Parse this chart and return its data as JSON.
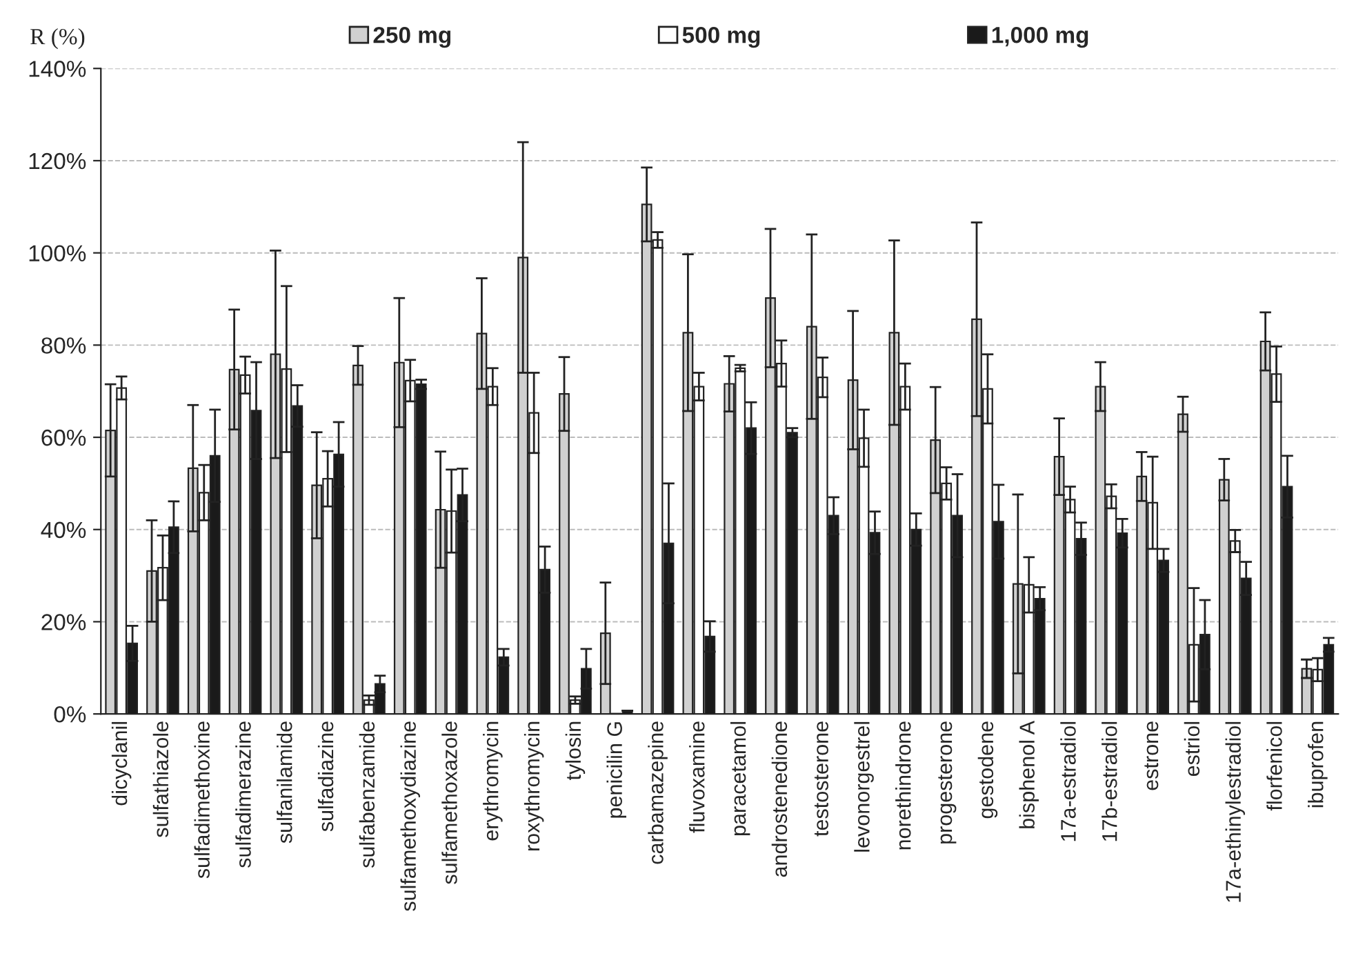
{
  "chart_data": {
    "type": "bar",
    "ylabel": "R (%)",
    "categories": [
      "dicyclanil",
      "sulfathiazole",
      "sulfadimethoxine",
      "sulfadimerazine",
      "sulfanilamide",
      "sulfadiazine",
      "sulfabenzamide",
      "sulfamethoxydiazine",
      "sulfamethoxazole",
      "erythromycin",
      "roxythromycin",
      "tylosin",
      "penicilin G",
      "carbamazepine",
      "fluvoxamine",
      "paracetamol",
      "androstenedione",
      "testosterone",
      "levonorgestrel",
      "norethindrone",
      "progesterone",
      "gestodene",
      "bisphenol A",
      "17a-estradiol",
      "17b-estradiol",
      "estrone",
      "estriol",
      "17a-ethinylestradiol",
      "florfenicol",
      "ibuprofen"
    ],
    "series": [
      {
        "name": "250 mg",
        "color": "#d0d0d0",
        "values": [
          61.5,
          31,
          53.3,
          74.7,
          78,
          49.6,
          75.6,
          76.2,
          44.3,
          82.5,
          99,
          69.4,
          17.5,
          110.5,
          82.7,
          71.6,
          90.2,
          84,
          72.4,
          82.7,
          59.4,
          85.6,
          28.2,
          55.8,
          71,
          51.5,
          65,
          50.8,
          80.8,
          9.8
        ],
        "errors": [
          10,
          11,
          13.7,
          13,
          22.5,
          11.5,
          4.2,
          14,
          12.6,
          12,
          25,
          8,
          11,
          8,
          17,
          6,
          15,
          20,
          15,
          20,
          11.5,
          21,
          19.4,
          8.3,
          5.3,
          5.3,
          3.8,
          4.5,
          6.3,
          2
        ]
      },
      {
        "name": "500 mg",
        "color": "#ffffff",
        "values": [
          70.7,
          31.7,
          48,
          73.5,
          74.8,
          51,
          3,
          72.3,
          44,
          71,
          65.3,
          3,
          null,
          102.8,
          71,
          75,
          76,
          73,
          59.8,
          71,
          50,
          70.5,
          28,
          46.5,
          47.2,
          45.8,
          15,
          37.5,
          73.7,
          9.6
        ],
        "errors": [
          2.5,
          7,
          6,
          4,
          18,
          6,
          1,
          4.5,
          9,
          4,
          8.7,
          0.8,
          null,
          1.7,
          3,
          0.7,
          5,
          4.3,
          6.2,
          5,
          3.5,
          7.5,
          6,
          2.8,
          2.6,
          10,
          12.3,
          2.4,
          6,
          2.5
        ]
      },
      {
        "name": "1,000 mg",
        "color": "#1a1a1a",
        "values": [
          15.3,
          40.5,
          56,
          65.8,
          66.8,
          56.3,
          6.5,
          71.5,
          47.5,
          12.3,
          31.3,
          9.8,
          0.7,
          37,
          16.8,
          62,
          61,
          43,
          39.3,
          40,
          43,
          41.7,
          25,
          38,
          39.2,
          33.3,
          17.2,
          29.4,
          49.3,
          15
        ],
        "errors": [
          3.8,
          5.6,
          10,
          10.5,
          4.5,
          7,
          1.8,
          1,
          5.7,
          1.8,
          5,
          4.3,
          null,
          13,
          3.3,
          5.6,
          1,
          4,
          4.6,
          3.5,
          9,
          8,
          2.5,
          3.5,
          3.1,
          2.5,
          7.5,
          3.6,
          6.7,
          1.5
        ]
      }
    ],
    "ylim": [
      0,
      140
    ],
    "yticks": [
      {
        "value": 0,
        "label": "0%"
      },
      {
        "value": 20,
        "label": "20%"
      },
      {
        "value": 40,
        "label": "40%"
      },
      {
        "value": 60,
        "label": "60%"
      },
      {
        "value": 80,
        "label": "80%"
      },
      {
        "value": 100,
        "label": "100%"
      },
      {
        "value": 120,
        "label": "120%"
      },
      {
        "value": 140,
        "label": "140%"
      }
    ],
    "grid": "y",
    "legend": "top"
  }
}
